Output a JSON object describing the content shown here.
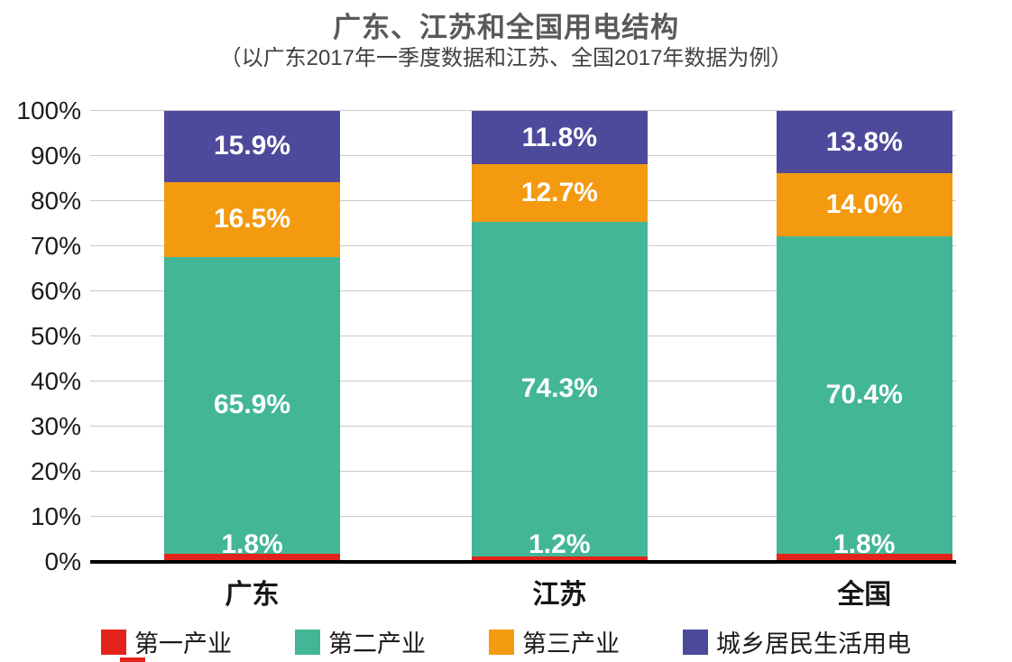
{
  "chart_data": {
    "type": "bar",
    "stacked": true,
    "title": "广东、江苏和全国用电结构",
    "subtitle": "（以广东2017年一季度数据和江苏、全国2017年数据为例）",
    "categories": [
      "广东",
      "江苏",
      "全国"
    ],
    "series": [
      {
        "name": "第一产业",
        "color": "#e3241d",
        "values": [
          1.8,
          1.2,
          1.8
        ]
      },
      {
        "name": "第二产业",
        "color": "#43b795",
        "values": [
          65.9,
          74.3,
          70.4
        ]
      },
      {
        "name": "第三产业",
        "color": "#f39a11",
        "values": [
          16.5,
          12.7,
          14.0
        ]
      },
      {
        "name": "城乡居民生活用电",
        "color": "#4d4a9b",
        "values": [
          15.9,
          11.8,
          13.8
        ]
      }
    ],
    "y_ticks": [
      "0%",
      "10%",
      "20%",
      "30%",
      "40%",
      "50%",
      "60%",
      "70%",
      "80%",
      "90%",
      "100%"
    ],
    "ylim": [
      0,
      100
    ],
    "value_suffix": "%",
    "grid": true,
    "legend_position": "bottom",
    "xlabel": "",
    "ylabel": ""
  }
}
